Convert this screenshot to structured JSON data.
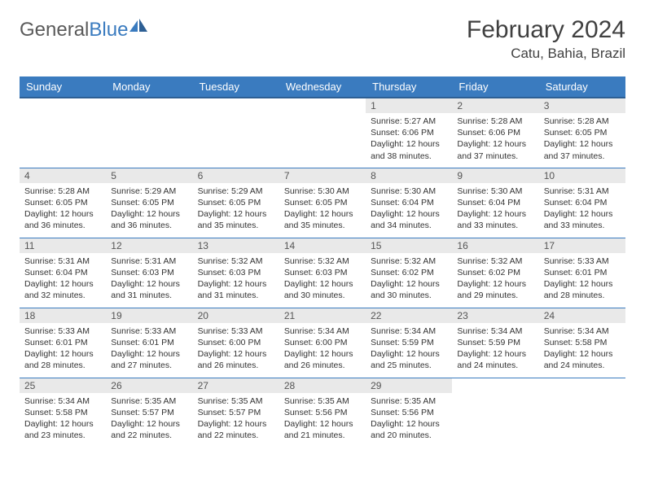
{
  "logo": {
    "text_gray": "General",
    "text_blue": "Blue"
  },
  "title": "February 2024",
  "location": "Catu, Bahia, Brazil",
  "colors": {
    "header_bg": "#3a7bbf",
    "header_border": "#2d5f94",
    "daynum_bg": "#e9e9e9",
    "text": "#333333",
    "logo_gray": "#5a5a5a",
    "logo_blue": "#3a7bbf"
  },
  "weekdays": [
    "Sunday",
    "Monday",
    "Tuesday",
    "Wednesday",
    "Thursday",
    "Friday",
    "Saturday"
  ],
  "weeks": [
    [
      null,
      null,
      null,
      null,
      {
        "n": "1",
        "sr": "5:27 AM",
        "ss": "6:06 PM",
        "dl": "12 hours and 38 minutes."
      },
      {
        "n": "2",
        "sr": "5:28 AM",
        "ss": "6:06 PM",
        "dl": "12 hours and 37 minutes."
      },
      {
        "n": "3",
        "sr": "5:28 AM",
        "ss": "6:05 PM",
        "dl": "12 hours and 37 minutes."
      }
    ],
    [
      {
        "n": "4",
        "sr": "5:28 AM",
        "ss": "6:05 PM",
        "dl": "12 hours and 36 minutes."
      },
      {
        "n": "5",
        "sr": "5:29 AM",
        "ss": "6:05 PM",
        "dl": "12 hours and 36 minutes."
      },
      {
        "n": "6",
        "sr": "5:29 AM",
        "ss": "6:05 PM",
        "dl": "12 hours and 35 minutes."
      },
      {
        "n": "7",
        "sr": "5:30 AM",
        "ss": "6:05 PM",
        "dl": "12 hours and 35 minutes."
      },
      {
        "n": "8",
        "sr": "5:30 AM",
        "ss": "6:04 PM",
        "dl": "12 hours and 34 minutes."
      },
      {
        "n": "9",
        "sr": "5:30 AM",
        "ss": "6:04 PM",
        "dl": "12 hours and 33 minutes."
      },
      {
        "n": "10",
        "sr": "5:31 AM",
        "ss": "6:04 PM",
        "dl": "12 hours and 33 minutes."
      }
    ],
    [
      {
        "n": "11",
        "sr": "5:31 AM",
        "ss": "6:04 PM",
        "dl": "12 hours and 32 minutes."
      },
      {
        "n": "12",
        "sr": "5:31 AM",
        "ss": "6:03 PM",
        "dl": "12 hours and 31 minutes."
      },
      {
        "n": "13",
        "sr": "5:32 AM",
        "ss": "6:03 PM",
        "dl": "12 hours and 31 minutes."
      },
      {
        "n": "14",
        "sr": "5:32 AM",
        "ss": "6:03 PM",
        "dl": "12 hours and 30 minutes."
      },
      {
        "n": "15",
        "sr": "5:32 AM",
        "ss": "6:02 PM",
        "dl": "12 hours and 30 minutes."
      },
      {
        "n": "16",
        "sr": "5:32 AM",
        "ss": "6:02 PM",
        "dl": "12 hours and 29 minutes."
      },
      {
        "n": "17",
        "sr": "5:33 AM",
        "ss": "6:01 PM",
        "dl": "12 hours and 28 minutes."
      }
    ],
    [
      {
        "n": "18",
        "sr": "5:33 AM",
        "ss": "6:01 PM",
        "dl": "12 hours and 28 minutes."
      },
      {
        "n": "19",
        "sr": "5:33 AM",
        "ss": "6:01 PM",
        "dl": "12 hours and 27 minutes."
      },
      {
        "n": "20",
        "sr": "5:33 AM",
        "ss": "6:00 PM",
        "dl": "12 hours and 26 minutes."
      },
      {
        "n": "21",
        "sr": "5:34 AM",
        "ss": "6:00 PM",
        "dl": "12 hours and 26 minutes."
      },
      {
        "n": "22",
        "sr": "5:34 AM",
        "ss": "5:59 PM",
        "dl": "12 hours and 25 minutes."
      },
      {
        "n": "23",
        "sr": "5:34 AM",
        "ss": "5:59 PM",
        "dl": "12 hours and 24 minutes."
      },
      {
        "n": "24",
        "sr": "5:34 AM",
        "ss": "5:58 PM",
        "dl": "12 hours and 24 minutes."
      }
    ],
    [
      {
        "n": "25",
        "sr": "5:34 AM",
        "ss": "5:58 PM",
        "dl": "12 hours and 23 minutes."
      },
      {
        "n": "26",
        "sr": "5:35 AM",
        "ss": "5:57 PM",
        "dl": "12 hours and 22 minutes."
      },
      {
        "n": "27",
        "sr": "5:35 AM",
        "ss": "5:57 PM",
        "dl": "12 hours and 22 minutes."
      },
      {
        "n": "28",
        "sr": "5:35 AM",
        "ss": "5:56 PM",
        "dl": "12 hours and 21 minutes."
      },
      {
        "n": "29",
        "sr": "5:35 AM",
        "ss": "5:56 PM",
        "dl": "12 hours and 20 minutes."
      },
      null,
      null
    ]
  ],
  "labels": {
    "sunrise": "Sunrise: ",
    "sunset": "Sunset: ",
    "daylight": "Daylight: "
  }
}
